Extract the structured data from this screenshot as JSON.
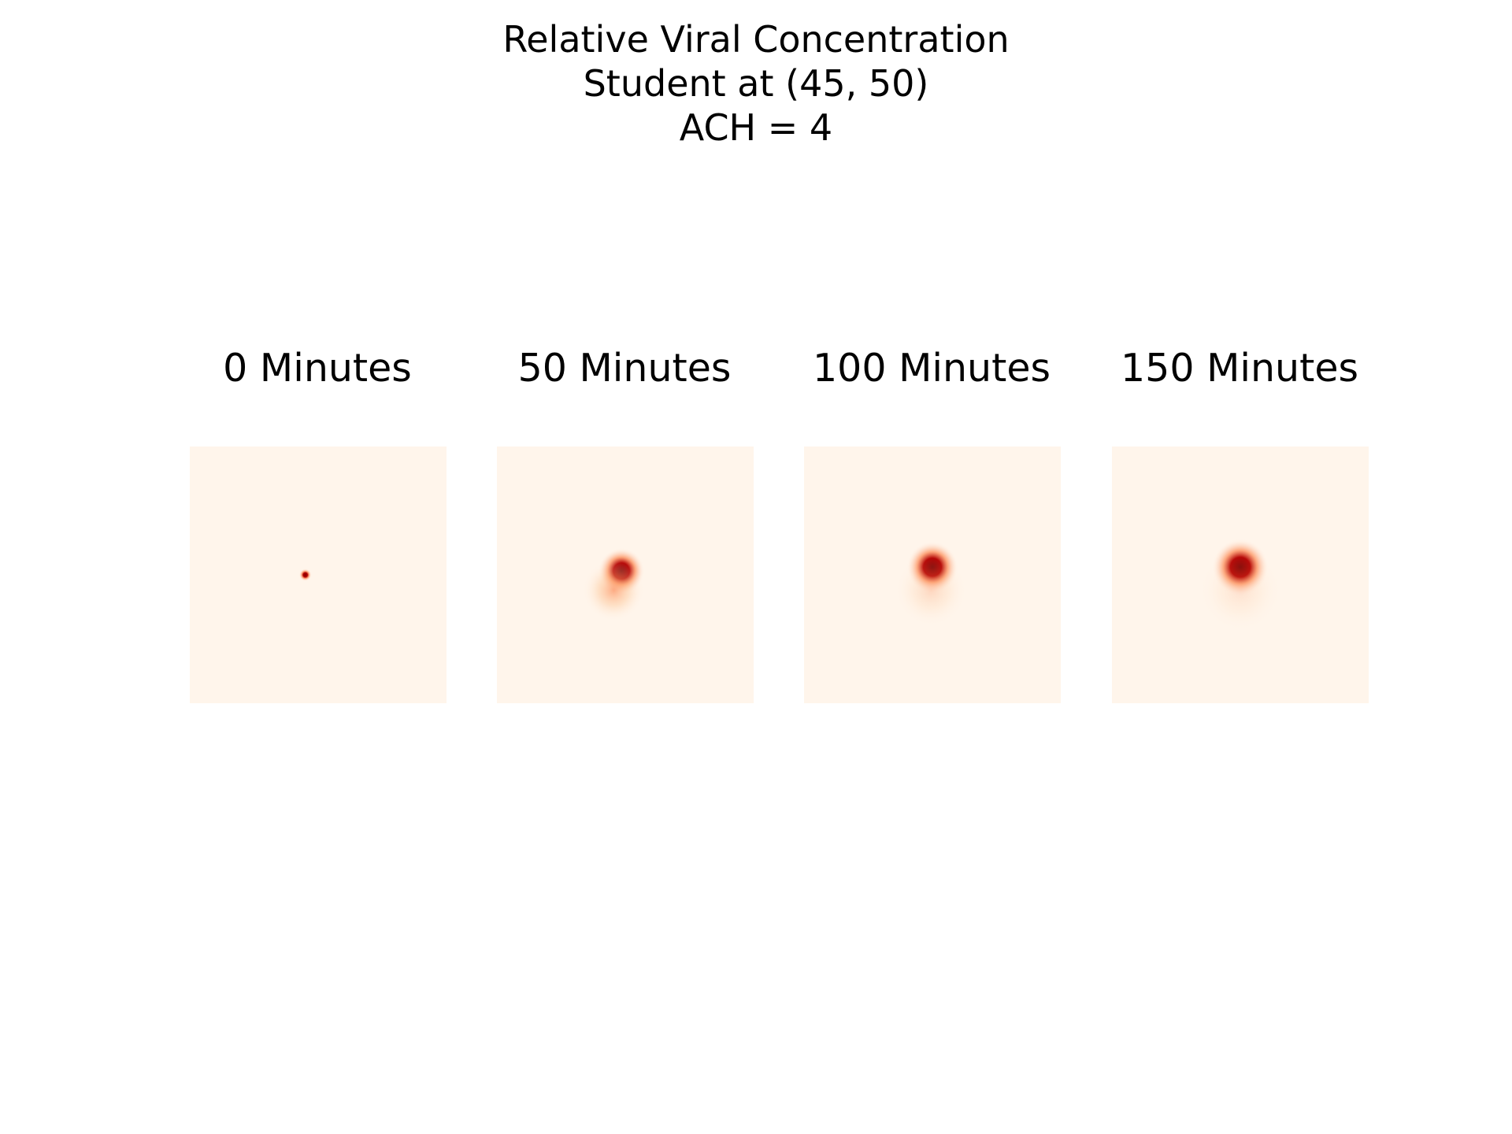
{
  "chart_data": {
    "type": "heatmap",
    "title": [
      "Relative Viral Concentration",
      "Student at (45, 50)",
      "ACH = 4"
    ],
    "colormap": "OrRd",
    "colors": {
      "low": "#fff5eb",
      "mid": "#fc8d59",
      "high": "#7f0000"
    },
    "axes_visible": false,
    "grid_extent": [
      0,
      100
    ],
    "source_position": [
      45,
      50
    ],
    "panels": [
      {
        "title": "0 Minutes",
        "time_minutes": 0,
        "plumes": [
          {
            "x": 45,
            "y": 50,
            "spread": 1.2,
            "intensity": 1.0
          }
        ]
      },
      {
        "title": "50 Minutes",
        "time_minutes": 50,
        "plumes": [
          {
            "x": 48.5,
            "y": 51.5,
            "spread": 4.5,
            "intensity": 1.0
          },
          {
            "x": 45.5,
            "y": 44,
            "spread": 6,
            "intensity": 0.35
          }
        ]
      },
      {
        "title": "100 Minutes",
        "time_minutes": 100,
        "plumes": [
          {
            "x": 50,
            "y": 53,
            "spread": 5,
            "intensity": 1.0
          },
          {
            "x": 49.5,
            "y": 44,
            "spread": 7,
            "intensity": 0.15
          }
        ]
      },
      {
        "title": "150 Minutes",
        "time_minutes": 150,
        "plumes": [
          {
            "x": 50,
            "y": 53,
            "spread": 5.5,
            "intensity": 1.0
          },
          {
            "x": 50,
            "y": 44,
            "spread": 8,
            "intensity": 0.1
          }
        ]
      }
    ]
  }
}
